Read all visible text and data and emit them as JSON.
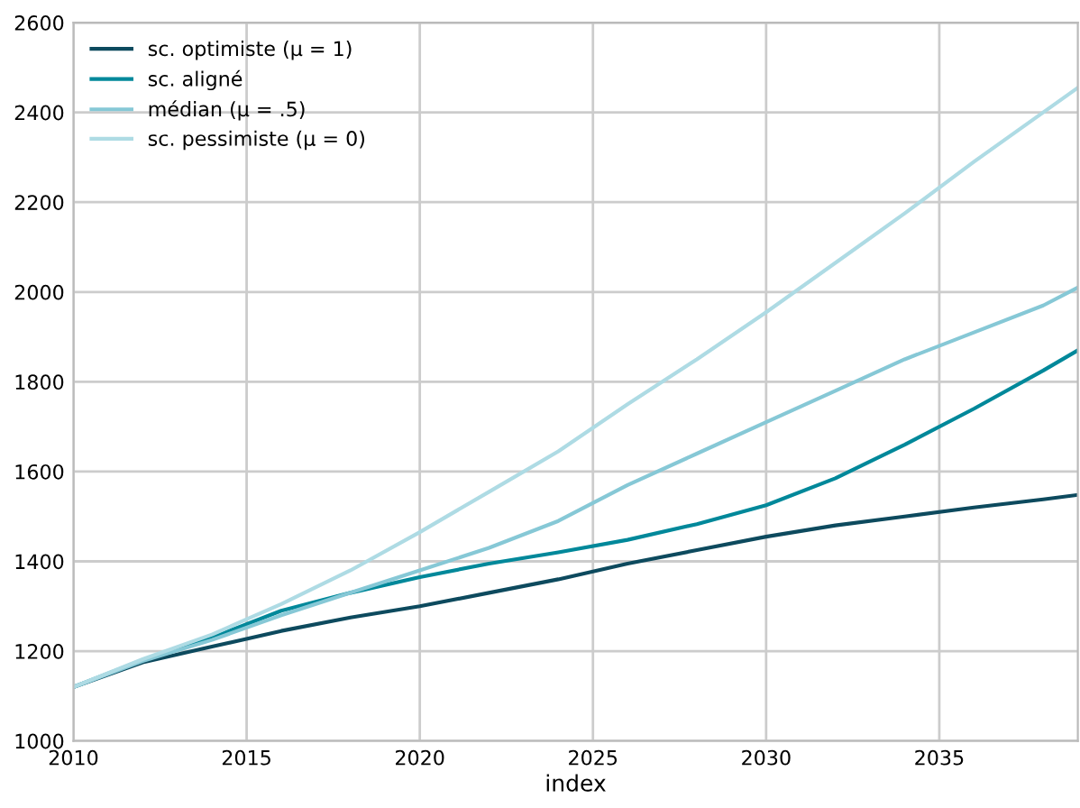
{
  "chart_data": {
    "type": "line",
    "xlabel": "index",
    "x": [
      2010,
      2012,
      2014,
      2016,
      2018,
      2020,
      2022,
      2024,
      2026,
      2028,
      2030,
      2032,
      2034,
      2036,
      2038,
      2039
    ],
    "series": [
      {
        "name": "sc. optimiste (μ = 1)",
        "color": "#0d4a5e",
        "values": [
          1120,
          1175,
          1210,
          1245,
          1275,
          1300,
          1330,
          1360,
          1395,
          1425,
          1455,
          1480,
          1500,
          1520,
          1538,
          1548
        ]
      },
      {
        "name": "sc. aligné",
        "color": "#00889a",
        "values": [
          1120,
          1180,
          1230,
          1290,
          1330,
          1365,
          1395,
          1420,
          1448,
          1483,
          1525,
          1585,
          1660,
          1740,
          1825,
          1870
        ]
      },
      {
        "name": "médian (μ = .5)",
        "color": "#86c8d6",
        "values": [
          1120,
          1178,
          1225,
          1280,
          1330,
          1380,
          1430,
          1490,
          1570,
          1640,
          1710,
          1780,
          1850,
          1910,
          1970,
          2010
        ]
      },
      {
        "name": "sc. pessimiste (μ = 0)",
        "color": "#aedbe4",
        "values": [
          1120,
          1182,
          1237,
          1305,
          1380,
          1465,
          1555,
          1645,
          1750,
          1850,
          1955,
          2065,
          2175,
          2290,
          2400,
          2455
        ]
      }
    ],
    "xlim": [
      2010,
      2039
    ],
    "ylim": [
      1000,
      2600
    ],
    "xticks": [
      2010,
      2015,
      2020,
      2025,
      2030,
      2035
    ],
    "yticks": [
      1000,
      1200,
      1400,
      1600,
      1800,
      2000,
      2200,
      2400,
      2600
    ],
    "grid": true,
    "legend": "top left"
  }
}
